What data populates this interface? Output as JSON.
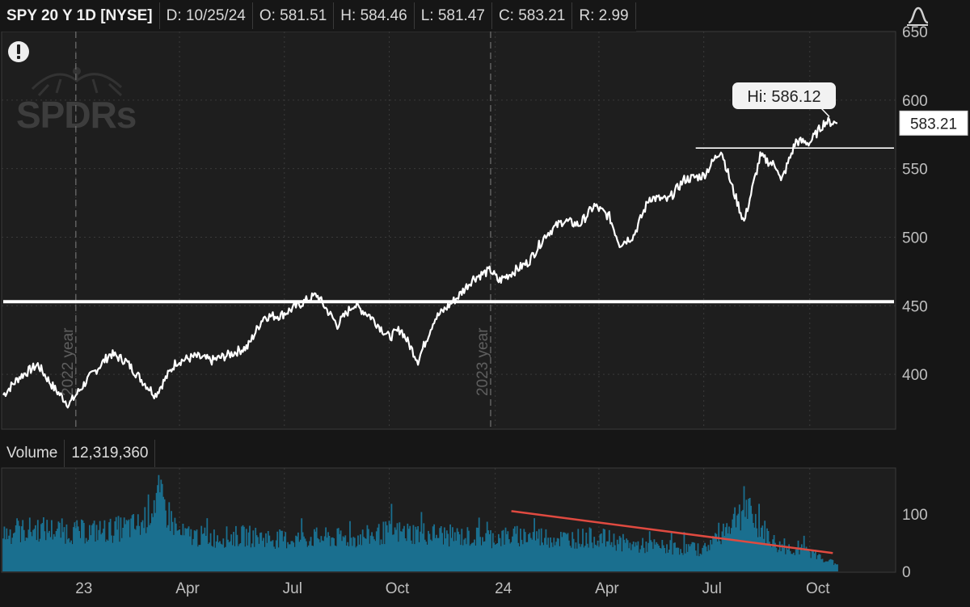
{
  "header": {
    "symbol": "SPY 20 Y 1D [NYSE]",
    "date": "D: 10/25/24",
    "open": "O: 581.51",
    "high": "H: 584.46",
    "low": "L: 581.47",
    "close": "C: 583.21",
    "range": "R: 2.99"
  },
  "watermark": "SPDRs",
  "alert_icon": "exclamation-icon",
  "draw_icon": "drawing-tool-icon",
  "volume_panel": {
    "label": "Volume",
    "value": "12,319,360"
  },
  "chart_data": [
    {
      "type": "line",
      "series": [
        {
          "name": "SPY",
          "color": "#ffffff",
          "points": [
            [
              "2022-11-01",
              385
            ],
            [
              "2022-11-15",
              398
            ],
            [
              "2022-12-01",
              407
            ],
            [
              "2022-12-15",
              390
            ],
            [
              "2022-12-28",
              378
            ],
            [
              "2023-01-12",
              395
            ],
            [
              "2023-02-02",
              415
            ],
            [
              "2023-02-15",
              410
            ],
            [
              "2023-03-01",
              396
            ],
            [
              "2023-03-13",
              385
            ],
            [
              "2023-03-31",
              409
            ],
            [
              "2023-04-17",
              413
            ],
            [
              "2023-05-01",
              410
            ],
            [
              "2023-05-15",
              414
            ],
            [
              "2023-06-01",
              420
            ],
            [
              "2023-06-15",
              442
            ],
            [
              "2023-06-30",
              443
            ],
            [
              "2023-07-14",
              450
            ],
            [
              "2023-07-31",
              458
            ],
            [
              "2023-08-18",
              436
            ],
            [
              "2023-09-01",
              451
            ],
            [
              "2023-09-15",
              443
            ],
            [
              "2023-10-02",
              427
            ],
            [
              "2023-10-12",
              433
            ],
            [
              "2023-10-27",
              410
            ],
            [
              "2023-11-10",
              440
            ],
            [
              "2023-11-30",
              456
            ],
            [
              "2023-12-14",
              470
            ],
            [
              "2023-12-29",
              476
            ],
            [
              "2024-01-05",
              468
            ],
            [
              "2024-01-31",
              482
            ],
            [
              "2024-02-15",
              502
            ],
            [
              "2024-03-01",
              512
            ],
            [
              "2024-03-15",
              509
            ],
            [
              "2024-03-28",
              523
            ],
            [
              "2024-04-10",
              515
            ],
            [
              "2024-04-19",
              495
            ],
            [
              "2024-05-01",
              501
            ],
            [
              "2024-05-15",
              529
            ],
            [
              "2024-05-31",
              527
            ],
            [
              "2024-06-14",
              542
            ],
            [
              "2024-07-01",
              545
            ],
            [
              "2024-07-16",
              564
            ],
            [
              "2024-07-25",
              538
            ],
            [
              "2024-08-05",
              511
            ],
            [
              "2024-08-19",
              559
            ],
            [
              "2024-09-03",
              551
            ],
            [
              "2024-09-06",
              540
            ],
            [
              "2024-09-19",
              570
            ],
            [
              "2024-10-01",
              569
            ],
            [
              "2024-10-14",
              584
            ],
            [
              "2024-10-18",
              584
            ],
            [
              "2024-10-25",
              583.21
            ]
          ]
        }
      ],
      "xlabel": "",
      "ylabel": "",
      "ylim": [
        360,
        650
      ],
      "y_ticks": [
        400,
        450,
        500,
        550,
        600,
        650
      ],
      "x_tick_labels": [
        "23",
        "Apr",
        "Jul",
        "Oct",
        "24",
        "Apr",
        "Jul",
        "Oct"
      ],
      "x_tick_dates": [
        "2023-01-03",
        "2023-04-03",
        "2023-07-03",
        "2023-10-02",
        "2024-01-02",
        "2024-04-01",
        "2024-07-01",
        "2024-10-01"
      ],
      "year_markers": [
        {
          "date": "2023-01-03",
          "label": "2022 year"
        },
        {
          "date": "2023-12-29",
          "label": "2023 year"
        }
      ],
      "hi_label": "Hi: 586.12",
      "hi_date": "2024-10-18",
      "hi_value": 586.12,
      "last_price_label": "583.21",
      "last_price": 583.21,
      "horizontal_lines": [
        {
          "value": 453,
          "from": "2022-11-01",
          "color": "#ffffff",
          "weight": "thick"
        },
        {
          "value": 565,
          "from": "2024-06-24",
          "color": "#ffffff",
          "weight": "thin"
        }
      ],
      "grid": true
    },
    {
      "type": "bar",
      "series": [
        {
          "name": "Volume",
          "color": "#1a6f8f",
          "points": [
            [
              "2022-11-01",
              70
            ],
            [
              "2022-12-01",
              78
            ],
            [
              "2023-01-03",
              72
            ],
            [
              "2023-02-01",
              75
            ],
            [
              "2023-03-01",
              85
            ],
            [
              "2023-03-15",
              140
            ],
            [
              "2023-04-03",
              68
            ],
            [
              "2023-05-01",
              62
            ],
            [
              "2023-06-01",
              65
            ],
            [
              "2023-07-03",
              58
            ],
            [
              "2023-08-01",
              62
            ],
            [
              "2023-09-01",
              60
            ],
            [
              "2023-10-02",
              72
            ],
            [
              "2023-11-01",
              70
            ],
            [
              "2023-12-01",
              64
            ],
            [
              "2024-01-02",
              62
            ],
            [
              "2024-02-01",
              66
            ],
            [
              "2024-03-01",
              60
            ],
            [
              "2024-04-01",
              62
            ],
            [
              "2024-05-01",
              48
            ],
            [
              "2024-06-03",
              44
            ],
            [
              "2024-07-01",
              40
            ],
            [
              "2024-08-05",
              115
            ],
            [
              "2024-09-03",
              46
            ],
            [
              "2024-10-01",
              36
            ],
            [
              "2024-10-25",
              12.32
            ]
          ]
        }
      ],
      "ylim": [
        0,
        180
      ],
      "y_ticks": [
        0,
        100
      ],
      "trend_line": {
        "from": [
          "2024-01-16",
          105
        ],
        "to": [
          "2024-10-21",
          32
        ],
        "color": "#e04a40"
      },
      "grid": true
    }
  ]
}
